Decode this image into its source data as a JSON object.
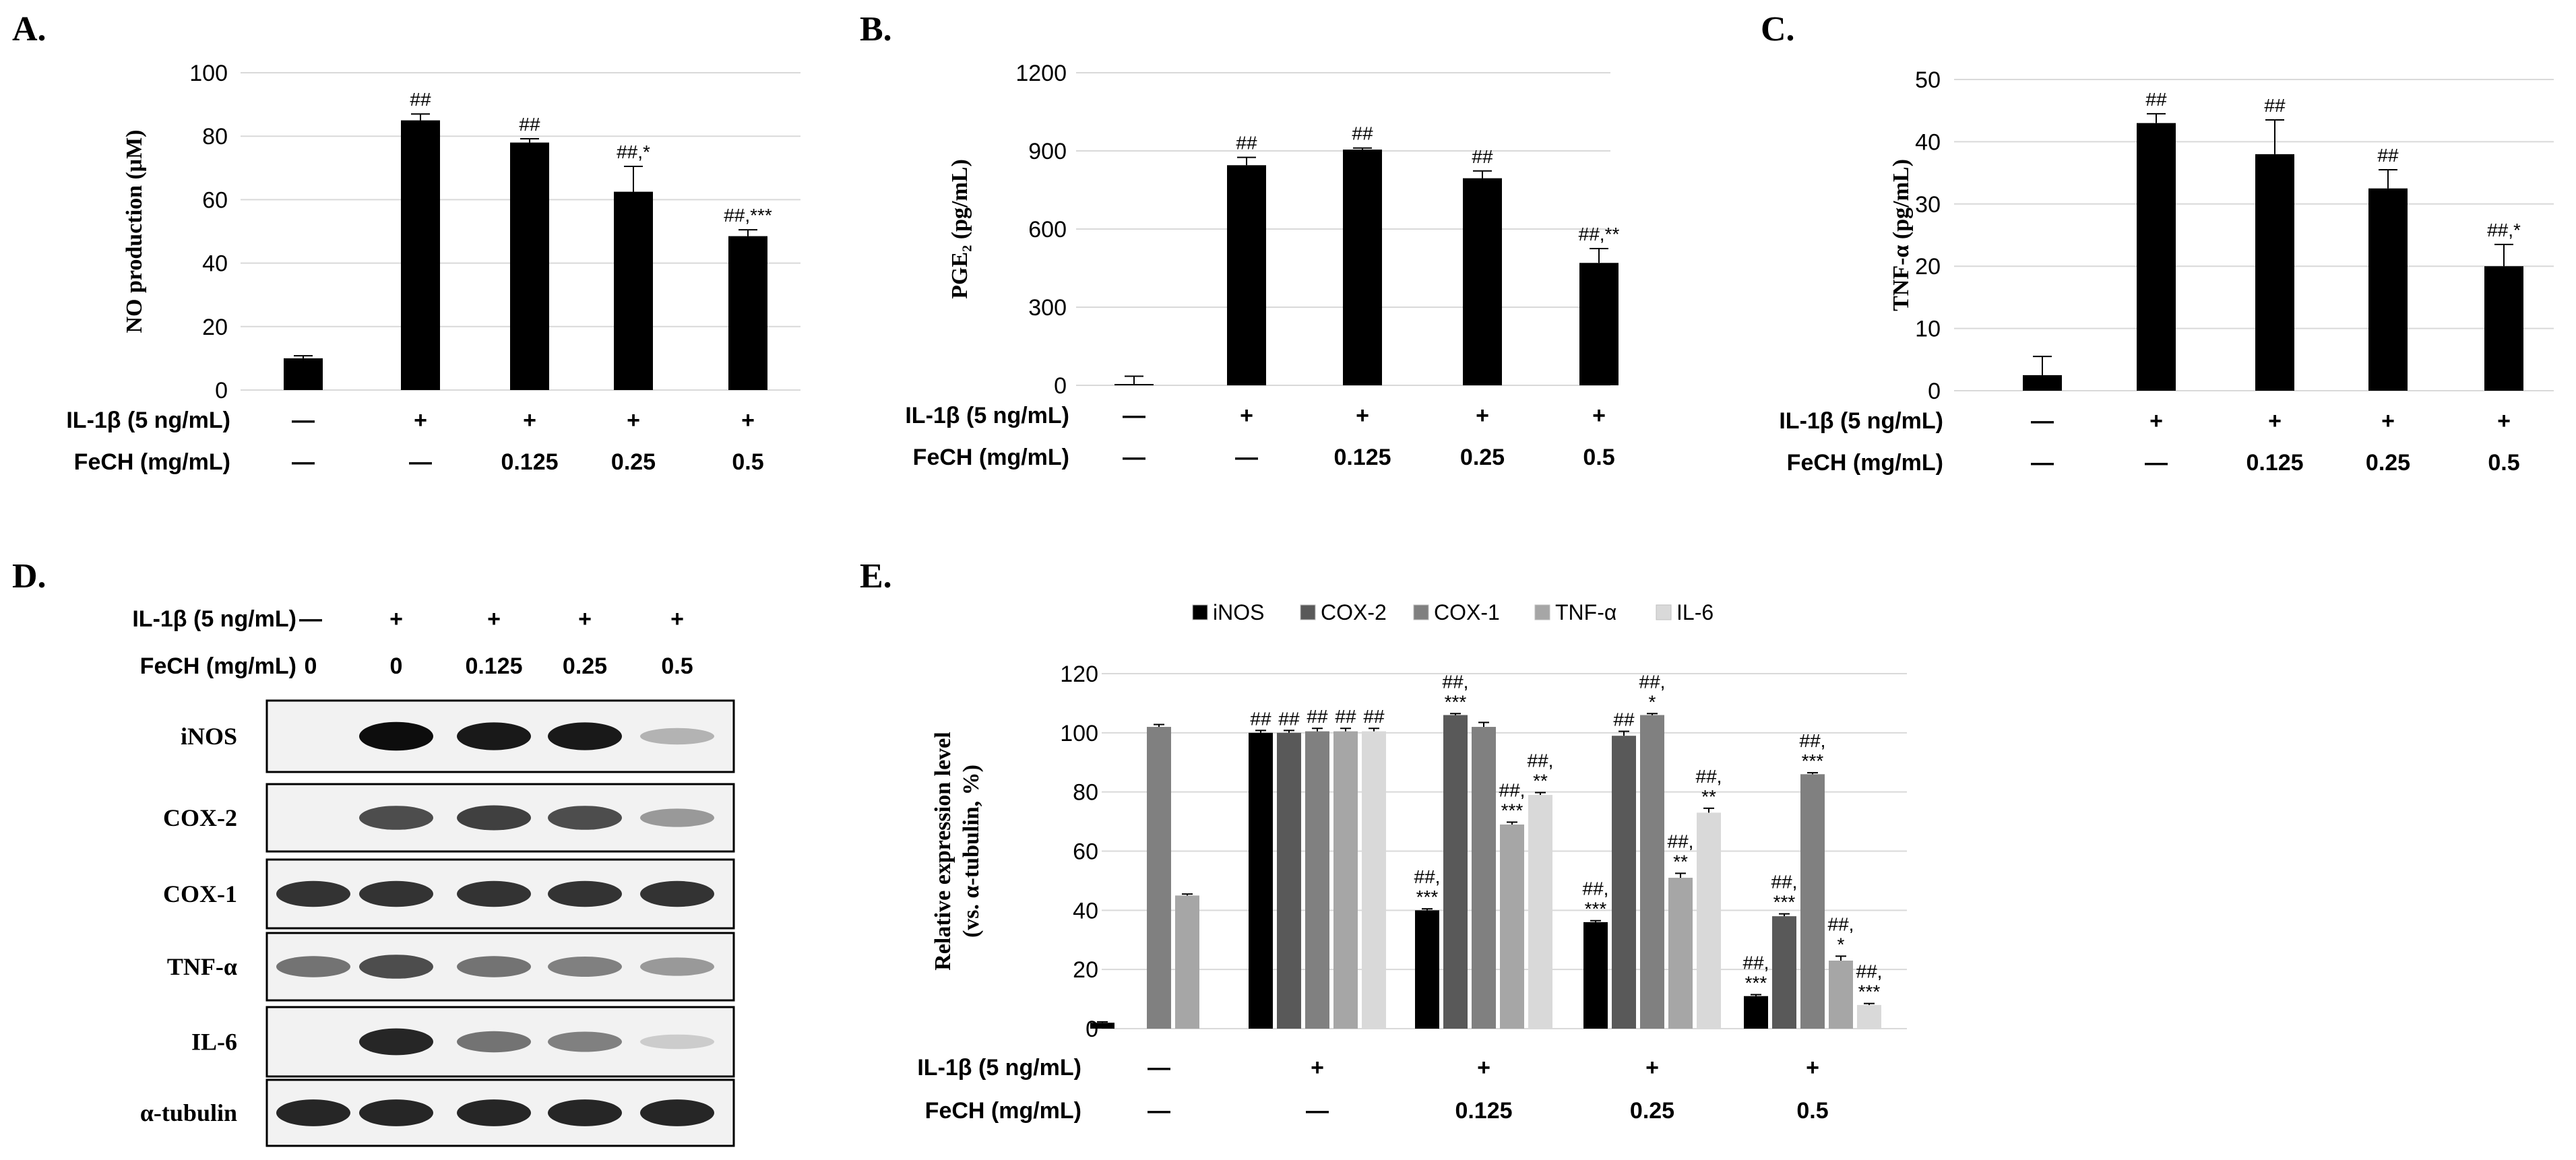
{
  "panels": {
    "A": {
      "label": "A."
    },
    "B": {
      "label": "B."
    },
    "C": {
      "label": "C."
    },
    "D": {
      "label": "D."
    },
    "E": {
      "label": "E."
    }
  },
  "condition_labels": {
    "il1b": "IL-1β (5 ng/mL)",
    "fech": "FeCH (mg/mL)",
    "il1b_values": [
      "—",
      "+",
      "+",
      "+",
      "+"
    ],
    "fech_values": [
      "—",
      "—",
      "0.125",
      "0.25",
      "0.5"
    ],
    "blot_il1b_values": [
      "—",
      "+",
      "+",
      "+",
      "+"
    ],
    "blot_fech_values": [
      "0",
      "0",
      "0.125",
      "0.25",
      "0.5"
    ]
  },
  "blot": {
    "rows": [
      "iNOS",
      "COX-2",
      "COX-1",
      "TNF-α",
      "IL-6",
      "α-tubulin"
    ],
    "intensities": [
      [
        0.0,
        0.95,
        0.9,
        0.9,
        0.3
      ],
      [
        0.0,
        0.7,
        0.75,
        0.7,
        0.4
      ],
      [
        0.8,
        0.8,
        0.8,
        0.8,
        0.8
      ],
      [
        0.55,
        0.7,
        0.55,
        0.5,
        0.4
      ],
      [
        0.0,
        0.85,
        0.55,
        0.5,
        0.2
      ],
      [
        0.85,
        0.85,
        0.85,
        0.85,
        0.85
      ]
    ]
  },
  "chart_data": [
    {
      "id": "A",
      "type": "bar",
      "ylabel": "NO production (μM)",
      "ylim": [
        0,
        100
      ],
      "yticks": [
        0,
        20,
        40,
        60,
        80,
        100
      ],
      "values": [
        10,
        85,
        78,
        62.5,
        48.5
      ],
      "errors": [
        0.8,
        2,
        1.2,
        8,
        2
      ],
      "annotations": [
        "",
        "##",
        "##",
        "##,*",
        "##,***"
      ]
    },
    {
      "id": "B",
      "type": "bar",
      "ylabel": "PGE₂ (pg/mL)",
      "ylim": [
        0,
        1200
      ],
      "yticks": [
        0,
        300,
        600,
        900,
        1200
      ],
      "values": [
        5,
        845,
        905,
        795,
        470
      ],
      "errors": [
        30,
        30,
        6,
        28,
        55
      ],
      "annotations": [
        "",
        "##",
        "##",
        "##",
        "##,**"
      ]
    },
    {
      "id": "C",
      "type": "bar",
      "ylabel": "TNF-α (pg/mL)",
      "ylim": [
        0,
        50
      ],
      "yticks": [
        0,
        10,
        20,
        30,
        40,
        50
      ],
      "values": [
        2.5,
        43,
        38,
        32.5,
        20
      ],
      "errors": [
        3,
        1.5,
        5.5,
        3,
        3.5
      ],
      "annotations": [
        "",
        "##",
        "##",
        "##",
        "##,*"
      ]
    },
    {
      "id": "E",
      "type": "bar",
      "ylabel_lines": [
        "Relative expression level",
        "(vs. α-tubulin, %)"
      ],
      "ylim": [
        0,
        120
      ],
      "yticks": [
        0,
        20,
        40,
        60,
        80,
        100,
        120
      ],
      "series": [
        {
          "name": "iNOS",
          "color": "#000000",
          "values": [
            2,
            100,
            40,
            36,
            11
          ],
          "errors": [
            0.3,
            0.8,
            0.5,
            0.5,
            0.5
          ],
          "annotations": [
            [],
            [
              "##"
            ],
            [
              "##,",
              "***"
            ],
            [
              "##,",
              "***"
            ],
            [
              "##,",
              "***"
            ]
          ]
        },
        {
          "name": "COX-2",
          "color": "#595959",
          "values": [
            0,
            100,
            106,
            99,
            38
          ],
          "errors": [
            0,
            0.8,
            0.5,
            1.5,
            0.8
          ],
          "annotations": [
            [],
            [
              "##"
            ],
            [
              "##,",
              "***"
            ],
            [
              "##"
            ],
            [
              "##,",
              "***"
            ]
          ]
        },
        {
          "name": "COX-1",
          "color": "#808080",
          "values": [
            102,
            100.5,
            102,
            106,
            86
          ],
          "errors": [
            0.8,
            1,
            1.5,
            0.5,
            0.5
          ],
          "annotations": [
            [],
            [
              "##"
            ],
            [],
            [
              "##,",
              "*"
            ],
            [
              "##,",
              "***"
            ]
          ]
        },
        {
          "name": "TNF-α",
          "color": "#a6a6a6",
          "values": [
            45,
            100.5,
            69,
            51,
            23
          ],
          "errors": [
            0.5,
            1,
            0.8,
            1.5,
            1.5
          ],
          "annotations": [
            [],
            [
              "##"
            ],
            [
              "##,",
              "***"
            ],
            [
              "##,",
              "**"
            ],
            [
              "##,",
              "*"
            ]
          ]
        },
        {
          "name": "IL-6",
          "color": "#d9d9d9",
          "values": [
            0,
            100.5,
            79,
            73,
            8
          ],
          "errors": [
            0,
            1,
            0.8,
            1.5,
            0.5
          ],
          "annotations": [
            [],
            [
              "##"
            ],
            [
              "##,",
              "**"
            ],
            [
              "##,",
              "**"
            ],
            [
              "##,",
              "***"
            ]
          ]
        }
      ]
    }
  ]
}
